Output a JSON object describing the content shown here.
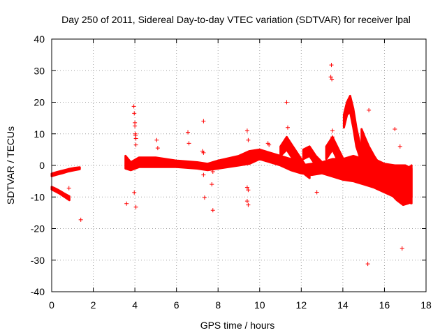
{
  "chart_data": {
    "type": "scatter",
    "title": "Day 250 of 2011, Sidereal Day-to-day VTEC variation (SDTVAR) for receiver lpal",
    "xlabel": "GPS time / hours",
    "ylabel": "SDTVAR / TECUs",
    "xlim": [
      0,
      18
    ],
    "ylim": [
      -40,
      40
    ],
    "xticks": [
      "0",
      "2",
      "4",
      "6",
      "8",
      "10",
      "12",
      "14",
      "16",
      "18"
    ],
    "yticks": [
      "40",
      "30",
      "20",
      "10",
      "0",
      "-10",
      "-20",
      "-30",
      "-40"
    ],
    "grid": true,
    "marker": "+",
    "series_color": "#ff0000",
    "bands": [
      {
        "name": "track-early-upper",
        "x": [
          0.0,
          0.2,
          0.5,
          0.8,
          1.1,
          1.35
        ],
        "lo": [
          -3.4,
          -3.0,
          -2.5,
          -1.9,
          -1.5,
          -1.2
        ],
        "hi": [
          -2.6,
          -2.2,
          -1.7,
          -1.2,
          -0.8,
          -0.6
        ]
      },
      {
        "name": "track-early-lower",
        "x": [
          0.0,
          0.2,
          0.4,
          0.6,
          0.85
        ],
        "lo": [
          -7.6,
          -8.3,
          -9.0,
          -9.9,
          -11.0
        ],
        "hi": [
          -6.8,
          -7.4,
          -8.1,
          -8.9,
          -9.8
        ]
      },
      {
        "name": "track-main",
        "x": [
          3.55,
          3.8,
          4.2,
          5.0,
          6.0,
          7.0,
          7.5,
          8.0,
          9.0,
          9.5,
          10.0,
          10.5,
          11.0,
          11.5,
          12.0,
          12.5,
          13.0,
          13.5,
          14.0,
          14.5,
          15.0,
          15.5,
          16.0,
          16.5,
          17.0,
          17.3
        ],
        "lo": [
          -1.0,
          -1.5,
          -0.5,
          -0.5,
          -0.5,
          -1.0,
          -1.5,
          -1.0,
          0.0,
          0.5,
          2.0,
          1.0,
          0.0,
          -1.5,
          -2.5,
          -3.0,
          -2.5,
          -3.5,
          -4.5,
          -5.0,
          -6.0,
          -7.0,
          -8.5,
          -10.0,
          -11.5,
          -12.0
        ],
        "hi": [
          3.0,
          1.0,
          2.5,
          2.5,
          1.5,
          1.0,
          0.5,
          1.5,
          3.0,
          4.5,
          5.0,
          4.0,
          3.0,
          2.0,
          0.0,
          0.5,
          1.0,
          2.0,
          2.0,
          3.0,
          2.0,
          2.0,
          0.5,
          0.0,
          0.0,
          -1.0
        ]
      },
      {
        "name": "track-spike-14",
        "x": [
          14.05,
          14.2,
          14.35,
          14.5,
          14.65,
          14.85,
          15.1
        ],
        "lo": [
          12.0,
          16.0,
          17.0,
          12.0,
          6.0,
          2.0,
          -2.0
        ],
        "hi": [
          16.0,
          20.0,
          22.0,
          18.0,
          12.0,
          6.0,
          2.0
        ]
      },
      {
        "name": "track-spike-15",
        "x": [
          14.9,
          15.05,
          15.25,
          15.5,
          15.8,
          16.1,
          16.4
        ],
        "lo": [
          5.0,
          3.0,
          0.0,
          -3.0,
          -5.0,
          -7.0,
          -8.0
        ],
        "hi": [
          11.5,
          9.0,
          6.0,
          3.0,
          0.0,
          -2.0,
          -3.0
        ]
      },
      {
        "name": "track-tail-16",
        "x": [
          15.5,
          15.9,
          16.3,
          16.6,
          16.9,
          17.15,
          17.3
        ],
        "lo": [
          -4.0,
          -7.0,
          -9.0,
          -11.0,
          -12.5,
          -12.0,
          -10.0
        ],
        "hi": [
          2.0,
          0.0,
          -2.0,
          -3.0,
          -3.0,
          -1.0,
          0.0
        ]
      },
      {
        "name": "track-diag-11",
        "x": [
          11.0,
          11.3,
          11.6,
          11.9,
          12.2,
          12.4
        ],
        "lo": [
          3.0,
          5.0,
          2.0,
          -1.0,
          -3.0,
          -4.0
        ],
        "hi": [
          6.0,
          9.0,
          6.0,
          3.0,
          0.0,
          -2.0
        ]
      },
      {
        "name": "track-diag-12",
        "x": [
          12.1,
          12.4,
          12.7,
          13.0,
          13.3
        ],
        "lo": [
          2.0,
          3.0,
          0.0,
          -2.0,
          -3.0
        ],
        "hi": [
          5.0,
          6.0,
          3.0,
          1.0,
          0.0
        ]
      },
      {
        "name": "track-diag-13",
        "x": [
          13.2,
          13.5,
          13.8,
          14.1
        ],
        "lo": [
          2.0,
          5.0,
          1.0,
          -2.0
        ],
        "hi": [
          6.0,
          9.0,
          5.0,
          1.0
        ]
      }
    ],
    "points": [
      [
        0.83,
        -7.2
      ],
      [
        1.4,
        -17.2
      ],
      [
        3.6,
        -12.1
      ],
      [
        3.95,
        18.7
      ],
      [
        3.97,
        16.5
      ],
      [
        4.0,
        13.5
      ],
      [
        4.0,
        12.5
      ],
      [
        4.02,
        10.0
      ],
      [
        4.03,
        9.5
      ],
      [
        4.05,
        8.5
      ],
      [
        4.05,
        6.5
      ],
      [
        3.97,
        -8.6
      ],
      [
        4.05,
        -13.2
      ],
      [
        5.05,
        8.0
      ],
      [
        5.1,
        5.5
      ],
      [
        6.55,
        10.5
      ],
      [
        6.6,
        7.0
      ],
      [
        7.3,
        14.0
      ],
      [
        7.25,
        4.5
      ],
      [
        7.3,
        4.0
      ],
      [
        7.3,
        -3.0
      ],
      [
        7.35,
        -10.2
      ],
      [
        7.75,
        -14.2
      ],
      [
        7.7,
        -6.0
      ],
      [
        7.75,
        -2.0
      ],
      [
        9.4,
        11.0
      ],
      [
        9.45,
        8.0
      ],
      [
        9.4,
        -7.0
      ],
      [
        9.45,
        -7.8
      ],
      [
        9.4,
        -11.3
      ],
      [
        9.45,
        -12.5
      ],
      [
        10.4,
        7.0
      ],
      [
        10.45,
        6.5
      ],
      [
        11.3,
        20.0
      ],
      [
        11.35,
        12.0
      ],
      [
        12.75,
        -8.5
      ],
      [
        12.7,
        2.5
      ],
      [
        13.45,
        31.8
      ],
      [
        13.42,
        28.0
      ],
      [
        13.47,
        27.3
      ],
      [
        13.5,
        11.0
      ],
      [
        13.5,
        9.0
      ],
      [
        15.25,
        17.5
      ],
      [
        15.2,
        -31.2
      ],
      [
        16.5,
        11.5
      ],
      [
        16.75,
        6.0
      ],
      [
        16.85,
        -26.3
      ]
    ]
  }
}
